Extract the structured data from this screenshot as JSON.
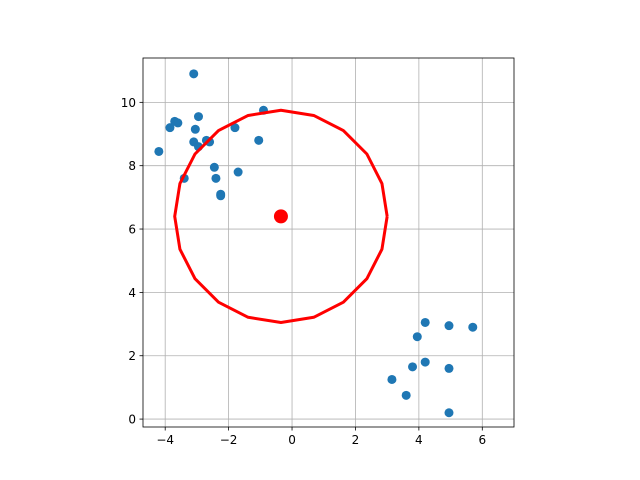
{
  "chart_data": {
    "type": "scatter",
    "title": "",
    "xlabel": "",
    "ylabel": "",
    "xlim": [
      -4.7,
      7.0
    ],
    "ylim": [
      -0.25,
      11.4
    ],
    "x_ticks": [
      -4,
      -2,
      0,
      2,
      4,
      6
    ],
    "y_ticks": [
      0,
      2,
      4,
      6,
      8,
      10
    ],
    "grid": true,
    "equal_aspect": true,
    "points": {
      "color": "#1f77b4",
      "x": [
        -3.1,
        -3.85,
        -3.7,
        -3.6,
        -3.05,
        -2.95,
        -4.2,
        -3.1,
        -2.95,
        -2.6,
        -2.7,
        -1.8,
        -1.05,
        -0.9,
        -2.45,
        -2.4,
        -3.4,
        -2.25,
        -2.25,
        -1.7,
        4.2,
        3.95,
        4.95,
        5.7,
        4.2,
        3.8,
        4.95,
        3.15,
        3.6,
        4.95
      ],
      "y": [
        10.9,
        9.2,
        9.4,
        9.35,
        9.15,
        9.55,
        8.45,
        8.75,
        8.6,
        8.75,
        8.8,
        9.2,
        8.8,
        9.75,
        7.95,
        7.6,
        7.6,
        7.1,
        7.05,
        7.8,
        3.05,
        2.6,
        2.95,
        2.9,
        1.8,
        1.65,
        1.6,
        1.25,
        0.75,
        0.2
      ]
    },
    "center": {
      "x": -0.35,
      "y": 6.4,
      "color": "#ff0000"
    },
    "circle": {
      "cx": -0.35,
      "cy": 6.4,
      "r": 3.35,
      "segments": 20,
      "color": "#ff0000"
    }
  }
}
